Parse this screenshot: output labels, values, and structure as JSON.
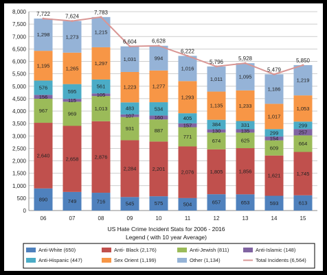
{
  "chart_data": {
    "type": "bar",
    "stacked": true,
    "title": "US Hate Crime Incident Stats for 2006 - 2016",
    "subtitle": "Legend ( with 10 year Average)",
    "categories": [
      "06",
      "07",
      "08",
      "09",
      "10",
      "11",
      "12",
      "13",
      "14",
      "15"
    ],
    "ylim": [
      0,
      8000
    ],
    "yticks": [
      "0",
      "500",
      "1,000",
      "1,500",
      "2,000",
      "2,500",
      "3,000",
      "3,500",
      "4,000",
      "4,500",
      "5,000",
      "5,500",
      "6,000",
      "6,500",
      "7,000",
      "7,500",
      "8,000"
    ],
    "grid": true,
    "legend_position": "bottom",
    "series": [
      {
        "name": "Anti-White (650)",
        "color": "#4f81bd",
        "values": [
          890,
          749,
          716,
          545,
          575,
          504,
          657,
          653,
          593,
          613
        ],
        "labels": [
          "890",
          "749",
          "716",
          "545",
          "575",
          "504",
          "657",
          "653",
          "593",
          "613"
        ]
      },
      {
        "name": "Anti- Black (2,176)",
        "color": "#c0504d",
        "values": [
          2640,
          2658,
          2876,
          2284,
          2201,
          2076,
          1805,
          1856,
          1621,
          1745
        ],
        "labels": [
          "2,640",
          "2,658",
          "2,876",
          "2,284",
          "2,201",
          "2,076",
          "1,805",
          "1,856",
          "1,621",
          "1,745"
        ]
      },
      {
        "name": "Anti-Jewish (811)",
        "color": "#9bbb59",
        "values": [
          967,
          969,
          1013,
          931,
          887,
          771,
          674,
          625,
          609,
          664
        ],
        "labels": [
          "967",
          "969",
          "1,013",
          "931",
          "887",
          "771",
          "674",
          "625",
          "609",
          "664"
        ]
      },
      {
        "name": "Anti-Islamic (148)",
        "color": "#8064a2",
        "values": [
          156,
          115,
          105,
          107,
          160,
          157,
          130,
          135,
          154,
          257
        ],
        "labels": [
          "156",
          "115",
          "105",
          "107",
          "160",
          "157",
          "130",
          "135",
          "154",
          "257"
        ]
      },
      {
        "name": "Anti-Hispanic (447)",
        "color": "#4bacc6",
        "values": [
          576,
          595,
          561,
          483,
          534,
          405,
          384,
          331,
          299,
          299
        ],
        "labels": [
          "576",
          "595",
          "561",
          "483",
          "534",
          "405",
          "384",
          "331",
          "299",
          "299"
        ]
      },
      {
        "name": "Sex Orient (1,199)",
        "color": "#f79646",
        "values": [
          1195,
          1265,
          1297,
          1223,
          1277,
          1293,
          1135,
          1233,
          1017,
          1053
        ],
        "labels": [
          "1,195",
          "1,265",
          "1,297",
          "1,223",
          "1,277",
          "1,293",
          "1,135",
          "1,233",
          "1,017",
          "1,053"
        ]
      },
      {
        "name": "Other (1,134)",
        "color": "#95b3d7",
        "values": [
          1298,
          1273,
          1215,
          1031,
          994,
          1016,
          1011,
          1095,
          1186,
          1219
        ],
        "labels": [
          "1,298",
          "1,273",
          "1,215",
          "1,031",
          "994",
          "1,016",
          "1,011",
          "1,095",
          "1,186",
          "1,219"
        ]
      }
    ],
    "line": {
      "name": "Total Incidents (6,564)",
      "color": "#d99694",
      "values": [
        7722,
        7624,
        7783,
        6604,
        6628,
        6222,
        5796,
        5928,
        5479,
        5850
      ],
      "labels": [
        "7,722",
        "7,624",
        "7,783",
        "6,604",
        "6,628",
        "6,222",
        "5,796",
        "5,928",
        "5,479",
        "5,850"
      ]
    }
  }
}
